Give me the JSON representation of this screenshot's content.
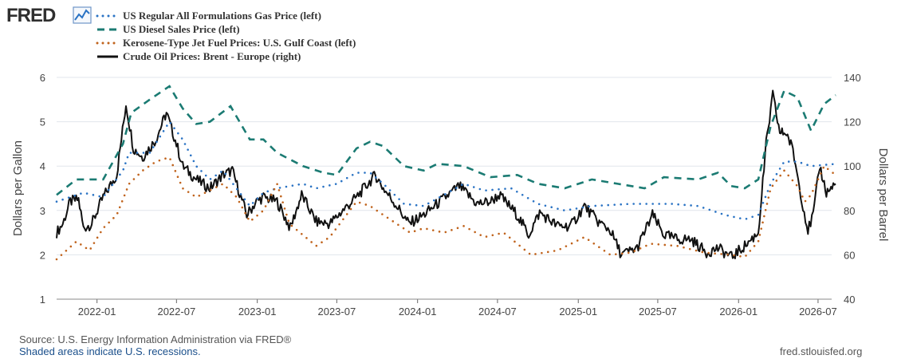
{
  "logo": {
    "text": "FRED"
  },
  "colors": {
    "gas": "#2a73c4",
    "diesel": "#1b7b73",
    "jet": "#c0631c",
    "brent": "#111111",
    "grid": "#e1e6ec",
    "plot_bg": "#ffffff"
  },
  "footer": {
    "source": "Source: U.S. Energy Information Administration via FRED®",
    "note": "Shaded areas indicate U.S. recessions.",
    "site": "fred.stlouisfed.org"
  },
  "chart_data": {
    "type": "line",
    "x_start": "2021-10",
    "x_end": "2026-08",
    "xticks": [
      "2022-01",
      "2022-07",
      "2023-01",
      "2023-07",
      "2024-01",
      "2024-07",
      "2025-01",
      "2025-07",
      "2026-01",
      "2026-07"
    ],
    "left_axis": {
      "label": "Dollars per Gallon",
      "ylim": [
        1,
        6
      ],
      "ticks": [
        1,
        2,
        3,
        4,
        5,
        6
      ]
    },
    "right_axis": {
      "label": "Dollars per Barrel",
      "ylim": [
        40,
        140
      ],
      "ticks": [
        40,
        60,
        80,
        100,
        120,
        140
      ]
    },
    "grid": true,
    "legend_placement": "top-left",
    "series": [
      {
        "name": "US Regular All Formulations Gas Price (left)",
        "axis": "left",
        "style": "dotted",
        "color_key": "gas",
        "points": [
          [
            "2021-10-01",
            3.2
          ],
          [
            "2021-12-01",
            3.4
          ],
          [
            "2022-01-15",
            3.3
          ],
          [
            "2022-03-01",
            3.9
          ],
          [
            "2022-03-15",
            4.3
          ],
          [
            "2022-05-01",
            4.3
          ],
          [
            "2022-06-15",
            5.0
          ],
          [
            "2022-07-15",
            4.6
          ],
          [
            "2022-08-15",
            4.0
          ],
          [
            "2022-09-15",
            3.7
          ],
          [
            "2022-10-15",
            3.9
          ],
          [
            "2022-12-15",
            3.1
          ],
          [
            "2023-01-15",
            3.4
          ],
          [
            "2023-02-15",
            3.5
          ],
          [
            "2023-04-15",
            3.6
          ],
          [
            "2023-05-15",
            3.5
          ],
          [
            "2023-07-01",
            3.6
          ],
          [
            "2023-08-15",
            3.85
          ],
          [
            "2023-09-15",
            3.85
          ],
          [
            "2023-10-15",
            3.6
          ],
          [
            "2023-12-01",
            3.15
          ],
          [
            "2024-01-15",
            3.1
          ],
          [
            "2024-03-01",
            3.35
          ],
          [
            "2024-04-15",
            3.6
          ],
          [
            "2024-06-01",
            3.45
          ],
          [
            "2024-08-01",
            3.5
          ],
          [
            "2024-10-01",
            3.15
          ],
          [
            "2024-12-01",
            3.0
          ],
          [
            "2025-02-01",
            3.1
          ],
          [
            "2025-05-01",
            3.15
          ],
          [
            "2025-08-01",
            3.15
          ],
          [
            "2025-10-01",
            3.1
          ],
          [
            "2025-12-01",
            2.9
          ],
          [
            "2026-01-15",
            2.8
          ],
          [
            "2026-02-15",
            2.9
          ],
          [
            "2026-03-15",
            3.6
          ],
          [
            "2026-04-15",
            4.1
          ],
          [
            "2026-05-15",
            4.1
          ],
          [
            "2026-06-15",
            4.0
          ],
          [
            "2026-08-10",
            4.05
          ]
        ]
      },
      {
        "name": "US Diesel Sales Price (left)",
        "axis": "left",
        "style": "dashed",
        "color_key": "diesel",
        "points": [
          [
            "2021-10-01",
            3.35
          ],
          [
            "2021-11-15",
            3.7
          ],
          [
            "2022-01-15",
            3.7
          ],
          [
            "2022-03-01",
            4.5
          ],
          [
            "2022-03-20",
            5.2
          ],
          [
            "2022-05-01",
            5.5
          ],
          [
            "2022-06-15",
            5.8
          ],
          [
            "2022-07-15",
            5.3
          ],
          [
            "2022-08-15",
            4.95
          ],
          [
            "2022-09-15",
            5.0
          ],
          [
            "2022-11-01",
            5.35
          ],
          [
            "2022-12-15",
            4.6
          ],
          [
            "2023-01-15",
            4.6
          ],
          [
            "2023-02-15",
            4.3
          ],
          [
            "2023-04-15",
            4.0
          ],
          [
            "2023-06-01",
            3.85
          ],
          [
            "2023-07-01",
            3.8
          ],
          [
            "2023-08-15",
            4.4
          ],
          [
            "2023-09-15",
            4.55
          ],
          [
            "2023-10-15",
            4.45
          ],
          [
            "2023-12-01",
            4.0
          ],
          [
            "2024-01-15",
            3.9
          ],
          [
            "2024-02-15",
            4.05
          ],
          [
            "2024-04-15",
            4.0
          ],
          [
            "2024-06-15",
            3.75
          ],
          [
            "2024-08-15",
            3.8
          ],
          [
            "2024-10-01",
            3.6
          ],
          [
            "2024-12-01",
            3.5
          ],
          [
            "2025-02-01",
            3.7
          ],
          [
            "2025-04-01",
            3.6
          ],
          [
            "2025-06-01",
            3.5
          ],
          [
            "2025-07-15",
            3.75
          ],
          [
            "2025-10-01",
            3.7
          ],
          [
            "2025-11-15",
            3.85
          ],
          [
            "2025-12-15",
            3.55
          ],
          [
            "2026-01-15",
            3.5
          ],
          [
            "2026-02-15",
            3.7
          ],
          [
            "2026-03-15",
            4.9
          ],
          [
            "2026-04-15",
            5.7
          ],
          [
            "2026-05-15",
            5.55
          ],
          [
            "2026-06-15",
            4.8
          ],
          [
            "2026-07-15",
            5.4
          ],
          [
            "2026-08-10",
            5.6
          ]
        ]
      },
      {
        "name": "Kerosene-Type Jet Fuel Prices: U.S. Gulf Coast (left)",
        "axis": "left",
        "style": "dotted",
        "color_key": "jet",
        "points": [
          [
            "2021-10-01",
            1.9
          ],
          [
            "2021-11-15",
            2.3
          ],
          [
            "2021-12-15",
            2.1
          ],
          [
            "2022-01-15",
            2.6
          ],
          [
            "2022-02-15",
            2.9
          ],
          [
            "2022-03-15",
            3.6
          ],
          [
            "2022-04-15",
            3.9
          ],
          [
            "2022-05-15",
            4.1
          ],
          [
            "2022-06-15",
            4.2
          ],
          [
            "2022-07-15",
            3.5
          ],
          [
            "2022-08-15",
            3.3
          ],
          [
            "2022-10-15",
            3.6
          ],
          [
            "2022-11-15",
            3.3
          ],
          [
            "2022-12-15",
            2.75
          ],
          [
            "2023-01-15",
            3.0
          ],
          [
            "2023-02-15",
            3.6
          ],
          [
            "2023-03-15",
            2.7
          ],
          [
            "2023-05-15",
            2.2
          ],
          [
            "2023-06-15",
            2.4
          ],
          [
            "2023-08-15",
            3.2
          ],
          [
            "2023-09-15",
            3.1
          ],
          [
            "2023-10-15",
            2.9
          ],
          [
            "2023-12-15",
            2.5
          ],
          [
            "2024-01-15",
            2.6
          ],
          [
            "2024-03-01",
            2.5
          ],
          [
            "2024-04-15",
            2.65
          ],
          [
            "2024-06-01",
            2.4
          ],
          [
            "2024-07-15",
            2.5
          ],
          [
            "2024-09-15",
            2.0
          ],
          [
            "2024-11-15",
            2.1
          ],
          [
            "2025-01-15",
            2.4
          ],
          [
            "2025-03-15",
            2.0
          ],
          [
            "2025-05-01",
            2.05
          ],
          [
            "2025-06-15",
            2.25
          ],
          [
            "2025-08-15",
            2.2
          ],
          [
            "2025-10-15",
            2.05
          ],
          [
            "2025-12-15",
            2.0
          ],
          [
            "2026-01-15",
            1.95
          ],
          [
            "2026-02-15",
            2.3
          ],
          [
            "2026-03-15",
            3.5
          ],
          [
            "2026-04-15",
            3.9
          ],
          [
            "2026-05-15",
            3.55
          ],
          [
            "2026-06-01",
            3.2
          ],
          [
            "2026-06-15",
            3.35
          ],
          [
            "2026-07-15",
            4.0
          ],
          [
            "2026-08-10",
            3.8
          ]
        ]
      },
      {
        "name": "Crude Oil Prices: Brent - Europe (right)",
        "axis": "right",
        "style": "solid",
        "color_key": "brent",
        "points": [
          [
            "2021-10-01",
            70
          ],
          [
            "2021-10-15",
            74
          ],
          [
            "2021-11-01",
            84
          ],
          [
            "2021-11-20",
            85
          ],
          [
            "2021-12-01",
            72
          ],
          [
            "2021-12-20",
            74
          ],
          [
            "2022-01-15",
            86
          ],
          [
            "2022-02-15",
            96
          ],
          [
            "2022-03-08",
            128
          ],
          [
            "2022-03-25",
            108
          ],
          [
            "2022-04-15",
            104
          ],
          [
            "2022-05-15",
            112
          ],
          [
            "2022-06-08",
            124
          ],
          [
            "2022-07-01",
            110
          ],
          [
            "2022-07-15",
            100
          ],
          [
            "2022-08-15",
            94
          ],
          [
            "2022-09-15",
            90
          ],
          [
            "2022-10-15",
            96
          ],
          [
            "2022-11-05",
            98
          ],
          [
            "2022-12-08",
            78
          ],
          [
            "2022-12-30",
            84
          ],
          [
            "2023-01-15",
            86
          ],
          [
            "2023-02-15",
            84
          ],
          [
            "2023-03-17",
            72
          ],
          [
            "2023-04-12",
            87
          ],
          [
            "2023-05-15",
            75
          ],
          [
            "2023-06-15",
            74
          ],
          [
            "2023-07-15",
            80
          ],
          [
            "2023-08-15",
            86
          ],
          [
            "2023-09-27",
            96
          ],
          [
            "2023-10-15",
            90
          ],
          [
            "2023-11-15",
            82
          ],
          [
            "2023-12-12",
            74
          ],
          [
            "2024-01-15",
            78
          ],
          [
            "2024-02-15",
            83
          ],
          [
            "2024-04-05",
            91
          ],
          [
            "2024-05-15",
            83
          ],
          [
            "2024-06-15",
            84
          ],
          [
            "2024-07-05",
            87
          ],
          [
            "2024-08-15",
            78
          ],
          [
            "2024-09-10",
            69
          ],
          [
            "2024-10-05",
            79
          ],
          [
            "2024-11-15",
            73
          ],
          [
            "2024-12-15",
            73
          ],
          [
            "2025-01-15",
            82
          ],
          [
            "2025-02-15",
            75
          ],
          [
            "2025-03-15",
            71
          ],
          [
            "2025-04-09",
            60
          ],
          [
            "2025-05-15",
            63
          ],
          [
            "2025-06-19",
            78
          ],
          [
            "2025-07-15",
            69
          ],
          [
            "2025-08-15",
            67
          ],
          [
            "2025-09-15",
            67
          ],
          [
            "2025-10-20",
            61
          ],
          [
            "2025-11-15",
            63
          ],
          [
            "2025-12-16",
            59
          ],
          [
            "2026-01-15",
            64
          ],
          [
            "2026-02-15",
            70
          ],
          [
            "2026-03-05",
            110
          ],
          [
            "2026-03-20",
            132
          ],
          [
            "2026-04-05",
            115
          ],
          [
            "2026-04-20",
            115
          ],
          [
            "2026-05-05",
            107
          ],
          [
            "2026-05-25",
            85
          ],
          [
            "2026-06-08",
            71
          ],
          [
            "2026-06-20",
            78
          ],
          [
            "2026-07-05",
            100
          ],
          [
            "2026-07-20",
            88
          ],
          [
            "2026-08-10",
            92
          ]
        ]
      }
    ]
  }
}
